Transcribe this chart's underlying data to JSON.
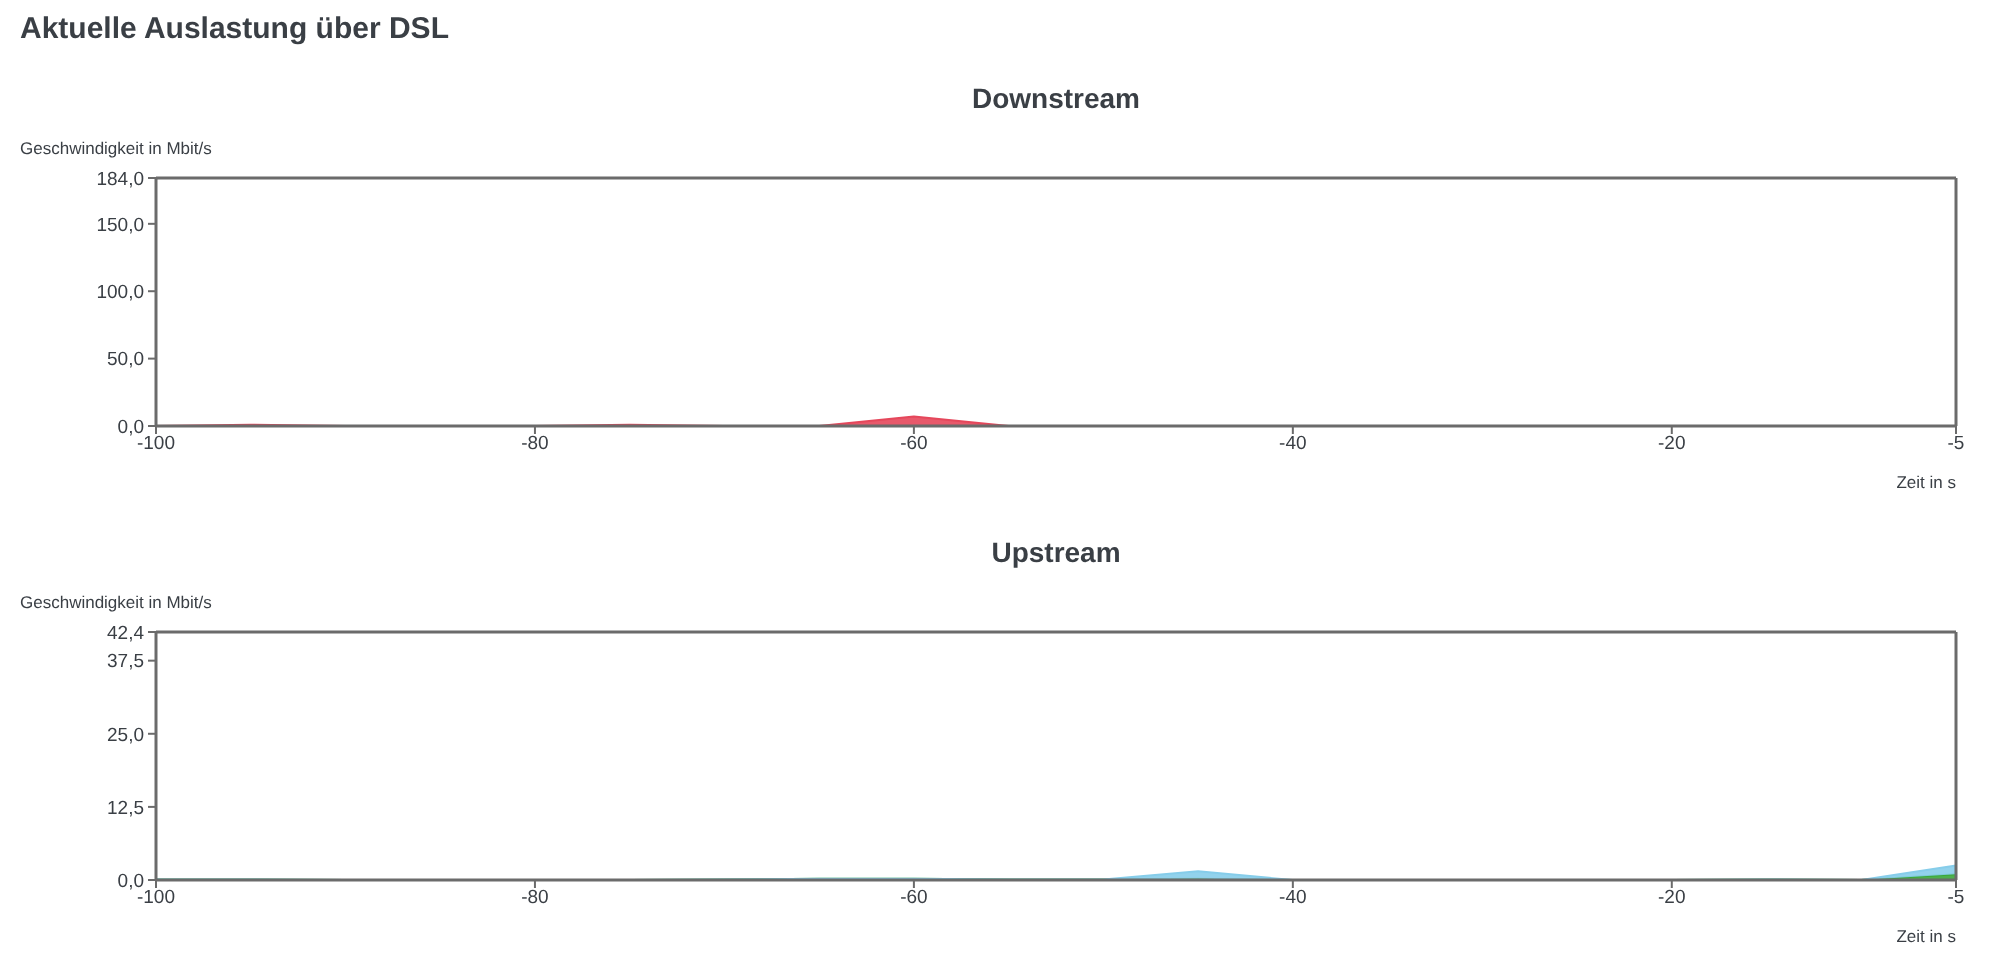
{
  "chart_data": [
    {
      "type": "area",
      "title": "Aktuelle Auslastung über DSL",
      "subtitle": "Downstream",
      "xlabel": "Zeit in s",
      "ylabel": "Geschwindigkeit in Mbit/s",
      "x": [
        -100,
        -95,
        -90,
        -85,
        -80,
        -75,
        -70,
        -65,
        -60,
        -55,
        -50,
        -45,
        -40,
        -35,
        -30,
        -25,
        -20,
        -15,
        -10,
        -5
      ],
      "series": [
        {
          "color": "#e5475b",
          "values": [
            0,
            1,
            0,
            0,
            0,
            1,
            0,
            0,
            7,
            0,
            0,
            0,
            0,
            0,
            0,
            0,
            0,
            0,
            0,
            0
          ]
        }
      ],
      "xlim": [
        -100,
        -5
      ],
      "xticks": [
        -100,
        -80,
        -60,
        -40,
        -20,
        -5
      ],
      "ylim": [
        0,
        184
      ],
      "yticks": [
        {
          "value": 0,
          "label": "0,0"
        },
        {
          "value": 50,
          "label": "50,0"
        },
        {
          "value": 100,
          "label": "100,0"
        },
        {
          "value": 150,
          "label": "150,0"
        },
        {
          "value": 184,
          "label": "184,0"
        }
      ]
    },
    {
      "type": "area",
      "title": "Upstream",
      "xlabel": "Zeit in s",
      "ylabel": "Geschwindigkeit in Mbit/s",
      "stacked": true,
      "x": [
        -100,
        -95,
        -90,
        -85,
        -80,
        -75,
        -70,
        -65,
        -60,
        -55,
        -50,
        -45,
        -40,
        -35,
        -30,
        -25,
        -20,
        -15,
        -10,
        -5
      ],
      "series": [
        {
          "color": "#3aa83a",
          "values": [
            0.1,
            0.1,
            0,
            0,
            0,
            0,
            0.1,
            0.2,
            0.2,
            0.1,
            0.1,
            0.2,
            0,
            0,
            0,
            0,
            0,
            0.1,
            0,
            1
          ]
        },
        {
          "color": "#86cdea",
          "values": [
            0,
            0,
            0,
            0,
            0,
            0,
            0,
            0,
            0,
            0,
            0,
            1.3,
            0,
            0,
            0,
            0,
            0,
            0,
            0,
            1.5
          ]
        }
      ],
      "xlim": [
        -100,
        -5
      ],
      "xticks": [
        -100,
        -80,
        -60,
        -40,
        -20,
        -5
      ],
      "ylim": [
        0,
        42.4
      ],
      "yticks": [
        {
          "value": 0,
          "label": "0,0"
        },
        {
          "value": 12.5,
          "label": "12,5"
        },
        {
          "value": 25,
          "label": "25,0"
        },
        {
          "value": 37.5,
          "label": "37,5"
        },
        {
          "value": 42.4,
          "label": "42,4"
        }
      ]
    }
  ]
}
